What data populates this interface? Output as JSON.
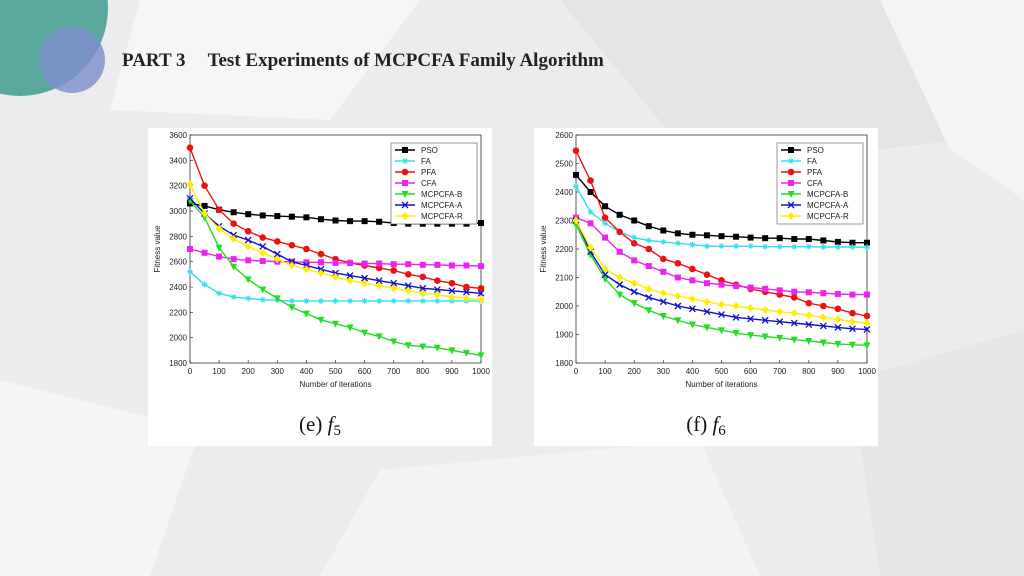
{
  "header": {
    "part": "PART 3",
    "title": "Test Experiments of MCPCFA Family Algorithm"
  },
  "colors": {
    "PSO": "#000000",
    "FA": "#33ddee",
    "PFA": "#ee1111",
    "CFA": "#ee22ee",
    "MCPCFA-B": "#22dd22",
    "MCPCFA-A": "#1111cc",
    "MCPCFA-R": "#ffee00"
  },
  "chart_data": [
    {
      "type": "line",
      "caption_prefix": "(e)",
      "caption_fn": "f",
      "caption_sub": "5",
      "xlabel": "Number of iterations",
      "ylabel": "Fitness value",
      "xlim": [
        0,
        1000
      ],
      "ylim": [
        1800,
        3600
      ],
      "xticks": [
        0,
        100,
        200,
        300,
        400,
        500,
        600,
        700,
        800,
        900,
        1000
      ],
      "yticks": [
        1800,
        2000,
        2200,
        2400,
        2600,
        2800,
        3000,
        3200,
        3400,
        3600
      ],
      "legend_position": "top-right",
      "x": [
        0,
        50,
        100,
        150,
        200,
        250,
        300,
        350,
        400,
        450,
        500,
        550,
        600,
        650,
        700,
        750,
        800,
        850,
        900,
        950,
        1000
      ],
      "series": [
        {
          "name": "PSO",
          "marker": "square",
          "values": [
            3060,
            3040,
            3010,
            2990,
            2975,
            2965,
            2960,
            2955,
            2950,
            2935,
            2925,
            2920,
            2920,
            2915,
            2905,
            2900,
            2900,
            2900,
            2900,
            2900,
            2905
          ]
        },
        {
          "name": "FA",
          "marker": "star",
          "values": [
            2520,
            2420,
            2350,
            2320,
            2310,
            2300,
            2295,
            2290,
            2290,
            2290,
            2290,
            2290,
            2290,
            2290,
            2290,
            2290,
            2290,
            2290,
            2290,
            2290,
            2290
          ]
        },
        {
          "name": "PFA",
          "marker": "circle",
          "values": [
            3500,
            3200,
            3010,
            2900,
            2840,
            2790,
            2760,
            2730,
            2700,
            2660,
            2620,
            2590,
            2570,
            2550,
            2530,
            2500,
            2480,
            2450,
            2430,
            2400,
            2390
          ]
        },
        {
          "name": "CFA",
          "marker": "square",
          "values": [
            2700,
            2670,
            2640,
            2620,
            2610,
            2605,
            2600,
            2600,
            2595,
            2595,
            2590,
            2590,
            2585,
            2585,
            2580,
            2580,
            2575,
            2575,
            2570,
            2570,
            2565
          ]
        },
        {
          "name": "MCPCFA-B",
          "marker": "triangle-down",
          "values": [
            3080,
            2950,
            2710,
            2560,
            2460,
            2380,
            2310,
            2240,
            2190,
            2140,
            2110,
            2080,
            2040,
            2010,
            1970,
            1940,
            1930,
            1920,
            1900,
            1880,
            1860
          ]
        },
        {
          "name": "MCPCFA-A",
          "marker": "x",
          "values": [
            3100,
            2980,
            2880,
            2810,
            2770,
            2720,
            2660,
            2600,
            2570,
            2540,
            2510,
            2490,
            2470,
            2450,
            2430,
            2410,
            2390,
            2380,
            2370,
            2360,
            2350
          ]
        },
        {
          "name": "MCPCFA-R",
          "marker": "diamond",
          "values": [
            3210,
            2980,
            2860,
            2780,
            2720,
            2670,
            2620,
            2570,
            2540,
            2510,
            2480,
            2450,
            2430,
            2410,
            2390,
            2370,
            2350,
            2340,
            2320,
            2310,
            2300
          ]
        }
      ]
    },
    {
      "type": "line",
      "caption_prefix": "(f)",
      "caption_fn": "f",
      "caption_sub": "6",
      "xlabel": "Number of iterations",
      "ylabel": "Fitness value",
      "xlim": [
        0,
        1000
      ],
      "ylim": [
        1800,
        2600
      ],
      "xticks": [
        0,
        100,
        200,
        300,
        400,
        500,
        600,
        700,
        800,
        900,
        1000
      ],
      "yticks": [
        1800,
        1900,
        2000,
        2100,
        2200,
        2300,
        2400,
        2500,
        2600
      ],
      "legend_position": "top-right",
      "x": [
        0,
        50,
        100,
        150,
        200,
        250,
        300,
        350,
        400,
        450,
        500,
        550,
        600,
        650,
        700,
        750,
        800,
        850,
        900,
        950,
        1000
      ],
      "series": [
        {
          "name": "PSO",
          "marker": "square",
          "values": [
            2460,
            2400,
            2350,
            2320,
            2300,
            2280,
            2265,
            2255,
            2250,
            2248,
            2245,
            2243,
            2240,
            2238,
            2238,
            2235,
            2235,
            2230,
            2225,
            2222,
            2222
          ]
        },
        {
          "name": "FA",
          "marker": "star",
          "values": [
            2420,
            2330,
            2290,
            2260,
            2240,
            2230,
            2225,
            2220,
            2215,
            2210,
            2210,
            2210,
            2210,
            2208,
            2208,
            2208,
            2208,
            2207,
            2207,
            2207,
            2206
          ]
        },
        {
          "name": "PFA",
          "marker": "circle",
          "values": [
            2545,
            2440,
            2310,
            2260,
            2220,
            2200,
            2165,
            2150,
            2130,
            2110,
            2090,
            2075,
            2060,
            2050,
            2040,
            2030,
            2010,
            2000,
            1990,
            1975,
            1965
          ]
        },
        {
          "name": "CFA",
          "marker": "square",
          "values": [
            2310,
            2290,
            2240,
            2190,
            2160,
            2140,
            2120,
            2100,
            2090,
            2080,
            2075,
            2070,
            2065,
            2060,
            2055,
            2050,
            2048,
            2045,
            2042,
            2040,
            2040
          ]
        },
        {
          "name": "MCPCFA-B",
          "marker": "triangle-down",
          "values": [
            2285,
            2180,
            2095,
            2040,
            2010,
            1985,
            1965,
            1950,
            1935,
            1925,
            1915,
            1905,
            1898,
            1893,
            1888,
            1882,
            1877,
            1872,
            1867,
            1864,
            1862
          ]
        },
        {
          "name": "MCPCFA-A",
          "marker": "x",
          "values": [
            2300,
            2190,
            2110,
            2075,
            2050,
            2030,
            2015,
            2000,
            1990,
            1980,
            1970,
            1960,
            1955,
            1950,
            1945,
            1940,
            1935,
            1930,
            1925,
            1920,
            1918
          ]
        },
        {
          "name": "MCPCFA-R",
          "marker": "diamond",
          "values": [
            2300,
            2205,
            2130,
            2100,
            2080,
            2060,
            2045,
            2035,
            2025,
            2015,
            2005,
            2000,
            1993,
            1986,
            1980,
            1975,
            1967,
            1960,
            1953,
            1945,
            1940
          ]
        }
      ]
    }
  ]
}
